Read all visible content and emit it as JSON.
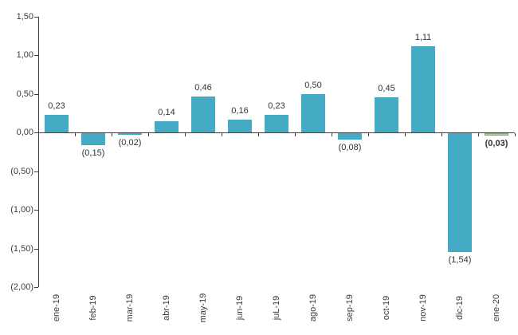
{
  "chart_data": {
    "type": "bar",
    "title": "",
    "xlabel": "",
    "ylabel": "",
    "categories": [
      "ene-19",
      "feb-19",
      "mar-19",
      "abr-19",
      "may-19",
      "jun-19",
      "juL-19",
      "ago-19",
      "sep-19",
      "oct-19",
      "nov-19",
      "dic-19",
      "ene-20"
    ],
    "values": [
      0.23,
      -0.15,
      -0.02,
      0.14,
      0.46,
      0.16,
      0.23,
      0.5,
      -0.08,
      0.45,
      1.11,
      -1.54,
      -0.03
    ],
    "value_labels": [
      "0,23",
      "(0,15)",
      "(0,02)",
      "0,14",
      "0,46",
      "0,16",
      "0,23",
      "0,50",
      "(0,08)",
      "0,45",
      "1,11",
      "(1,54)",
      "(0,03)"
    ],
    "ylim": [
      -2.0,
      1.5
    ],
    "ytick_values": [
      1.5,
      1.0,
      0.5,
      0.0,
      -0.5,
      -1.0,
      -1.5,
      -2.0
    ],
    "ytick_labels": [
      "1,50",
      "1,00",
      "0,50",
      "0,00",
      "(0,50)",
      "(1,00)",
      "(1,50)",
      "(2,00)"
    ],
    "grid": false,
    "legend": false,
    "bar_color": "#45aac3",
    "highlight_index": 12,
    "highlight_color": "#a5d48e",
    "highlight_border_color": "#7eb55e",
    "bold_label_index": 12,
    "axis_color": "#404040",
    "text_color": "#3d3d3d"
  }
}
